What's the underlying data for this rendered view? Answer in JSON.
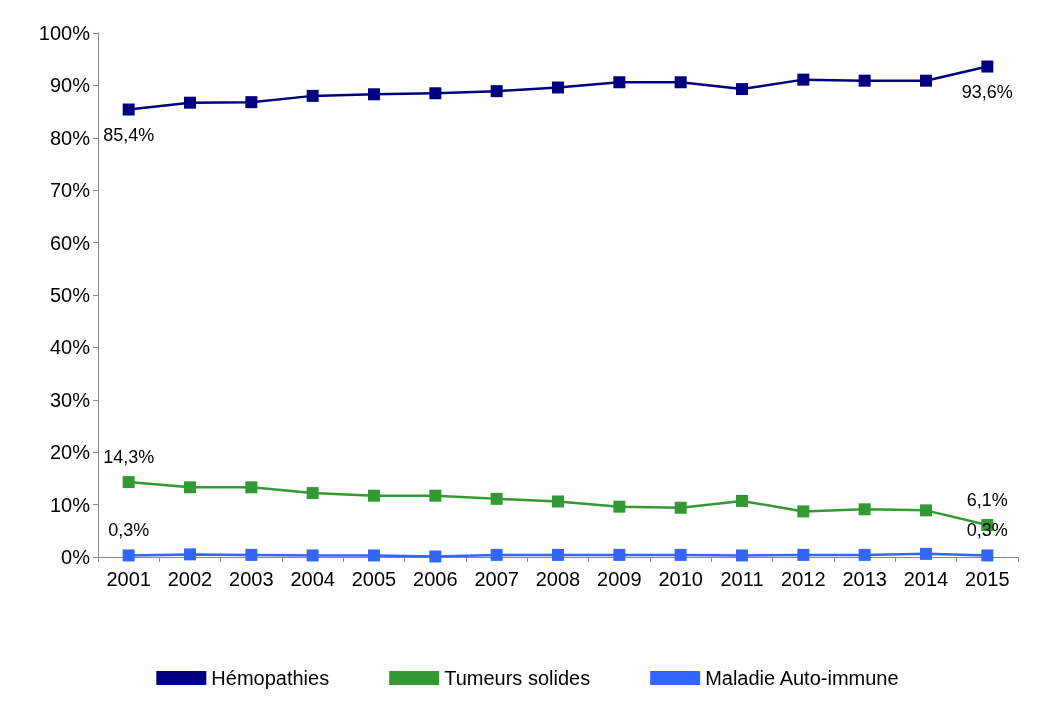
{
  "chart_data": {
    "type": "line",
    "categories": [
      "2001",
      "2002",
      "2003",
      "2004",
      "2005",
      "2006",
      "2007",
      "2008",
      "2009",
      "2010",
      "2011",
      "2012",
      "2013",
      "2014",
      "2015"
    ],
    "series": [
      {
        "name": "Hémopathies",
        "color": "#000080",
        "values": [
          85.4,
          86.7,
          86.8,
          88.0,
          88.3,
          88.5,
          88.9,
          89.6,
          90.6,
          90.6,
          89.3,
          91.1,
          90.9,
          90.9,
          93.6
        ],
        "value_labels": [
          "85,4%",
          null,
          null,
          null,
          null,
          null,
          null,
          null,
          null,
          null,
          null,
          null,
          null,
          null,
          "93,6%"
        ]
      },
      {
        "name": "Tumeurs solides",
        "color": "#339933",
        "values": [
          14.3,
          13.3,
          13.3,
          12.2,
          11.7,
          11.7,
          11.1,
          10.6,
          9.6,
          9.4,
          10.7,
          8.7,
          9.1,
          8.9,
          6.1
        ],
        "value_labels": [
          "14,3%",
          null,
          null,
          null,
          null,
          null,
          null,
          null,
          null,
          null,
          null,
          null,
          null,
          null,
          "6,1%"
        ]
      },
      {
        "name": "Maladie Auto-immune",
        "color": "#3366ff",
        "values": [
          0.3,
          0.5,
          0.4,
          0.3,
          0.3,
          0.1,
          0.4,
          0.4,
          0.4,
          0.4,
          0.3,
          0.4,
          0.4,
          0.6,
          0.3
        ],
        "value_labels": [
          "0,3%",
          null,
          null,
          null,
          null,
          null,
          null,
          null,
          null,
          null,
          null,
          null,
          null,
          null,
          "0,3%"
        ]
      }
    ],
    "ylim": [
      0,
      100
    ],
    "yticks": [
      {
        "value": 0,
        "label": "0%"
      },
      {
        "value": 10,
        "label": "10%"
      },
      {
        "value": 20,
        "label": "20%"
      },
      {
        "value": 30,
        "label": "30%"
      },
      {
        "value": 40,
        "label": "40%"
      },
      {
        "value": 50,
        "label": "50%"
      },
      {
        "value": 60,
        "label": "60%"
      },
      {
        "value": 70,
        "label": "70%"
      },
      {
        "value": 80,
        "label": "80%"
      },
      {
        "value": 90,
        "label": "90%"
      },
      {
        "value": 100,
        "label": "100%"
      }
    ],
    "grid": false,
    "legend": "bottom",
    "marker": "square",
    "line_style": "solid"
  }
}
